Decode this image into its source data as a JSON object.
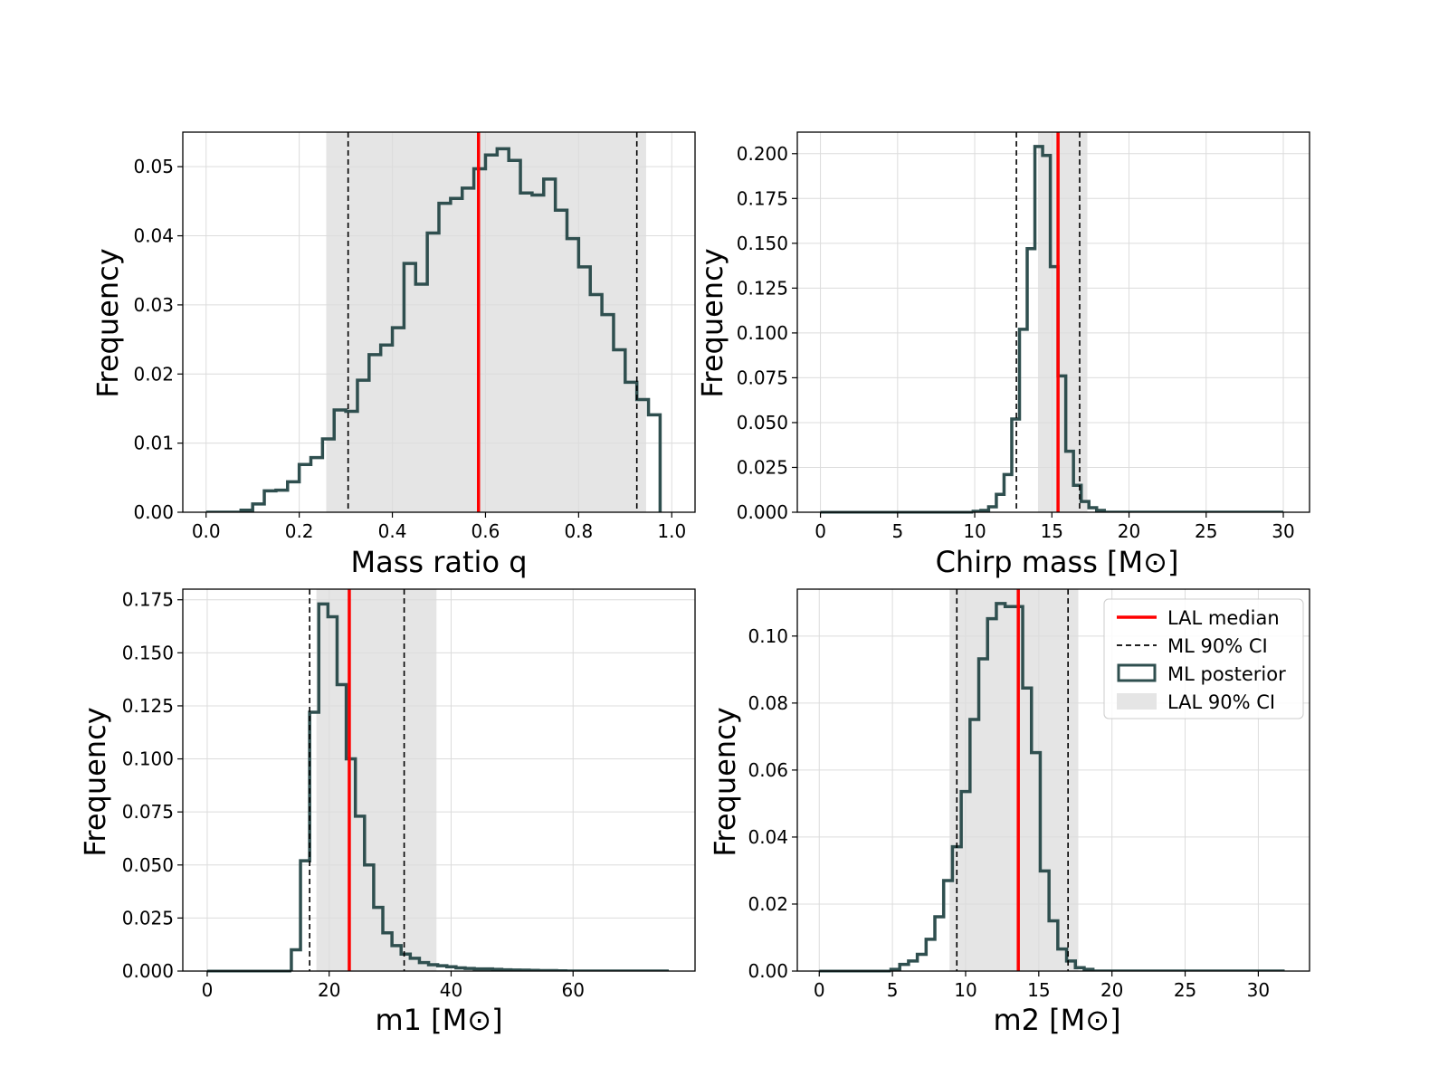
{
  "colors": {
    "median": "#ff0000",
    "ci_dash": "#000000",
    "posterior": "#2f4f4f",
    "lal_band": "#e5e5e5"
  },
  "legend": {
    "median_label": "LAL median",
    "ml_ci_label": "ML 90% CI",
    "posterior_label": "ML posterior",
    "lal_ci_label": "LAL 90% CI"
  },
  "chart_data": [
    {
      "type": "histogram",
      "xlabel": "Mass ratio q",
      "ylabel": "Frequency",
      "xlim": [
        -0.05,
        1.05
      ],
      "ylim": [
        0,
        0.055
      ],
      "xticks": [
        0.0,
        0.2,
        0.4,
        0.6,
        0.8,
        1.0
      ],
      "xtick_labels": [
        "0.0",
        "0.2",
        "0.4",
        "0.6",
        "0.8",
        "1.0"
      ],
      "yticks": [
        0,
        0.01,
        0.02,
        0.03,
        0.04,
        0.05
      ],
      "ytick_labels": [
        "0.00",
        "0.01",
        "0.02",
        "0.03",
        "0.04",
        "0.05"
      ],
      "bin_start": 0.0,
      "bin_width": 0.025,
      "values": [
        0,
        0,
        0,
        0.0003,
        0.0012,
        0.0031,
        0.0032,
        0.0044,
        0.0069,
        0.0079,
        0.0106,
        0.0148,
        0.0146,
        0.0191,
        0.0228,
        0.0242,
        0.0267,
        0.036,
        0.033,
        0.0404,
        0.0447,
        0.0454,
        0.0469,
        0.0497,
        0.0517,
        0.0526,
        0.0509,
        0.0462,
        0.0459,
        0.0482,
        0.0437,
        0.0396,
        0.0355,
        0.0315,
        0.0286,
        0.0235,
        0.0188,
        0.0163,
        0.0141
      ],
      "lal_median": 0.585,
      "lal_ci": [
        0.258,
        0.945
      ],
      "ml_ci": [
        0.305,
        0.925
      ],
      "legend": false
    },
    {
      "type": "histogram",
      "xlabel": "Chirp mass [M⊙]",
      "ylabel": "Frequency",
      "xlim": [
        -1.5,
        31.7
      ],
      "ylim": [
        0,
        0.212
      ],
      "xticks": [
        0,
        5,
        10,
        15,
        20,
        25,
        30
      ],
      "xtick_labels": [
        "0",
        "5",
        "10",
        "15",
        "20",
        "25",
        "30"
      ],
      "yticks": [
        0,
        0.025,
        0.05,
        0.075,
        0.1,
        0.125,
        0.15,
        0.175,
        0.2
      ],
      "ytick_labels": [
        "0.000",
        "0.025",
        "0.050",
        "0.075",
        "0.100",
        "0.125",
        "0.150",
        "0.175",
        "0.200"
      ],
      "bin_start": 9.9,
      "bin_width": 0.5,
      "values": [
        0.0005,
        0.001,
        0.003,
        0.01,
        0.021,
        0.052,
        0.102,
        0.147,
        0.204,
        0.199,
        0.137,
        0.076,
        0.034,
        0.015,
        0.006,
        0.0025,
        0.001
      ],
      "tail_end": 30.0,
      "lal_median": 15.4,
      "lal_ci": [
        14.1,
        17.3
      ],
      "ml_ci": [
        12.7,
        16.8
      ],
      "legend": false
    },
    {
      "type": "histogram",
      "xlabel": "m1 [M⊙]",
      "ylabel": "Frequency",
      "xlim": [
        -4,
        80
      ],
      "ylim": [
        0,
        0.18
      ],
      "xticks": [
        0,
        20,
        40,
        60
      ],
      "xtick_labels": [
        "0",
        "20",
        "40",
        "60"
      ],
      "yticks": [
        0,
        0.025,
        0.05,
        0.075,
        0.1,
        0.125,
        0.15,
        0.175
      ],
      "ytick_labels": [
        "0.000",
        "0.025",
        "0.050",
        "0.075",
        "0.100",
        "0.125",
        "0.150",
        "0.175"
      ],
      "bin_start": 13.8,
      "bin_width": 1.5,
      "values": [
        0.01,
        0.052,
        0.122,
        0.173,
        0.167,
        0.135,
        0.1,
        0.073,
        0.05,
        0.03,
        0.018,
        0.012,
        0.008,
        0.006,
        0.004,
        0.003,
        0.0025,
        0.002,
        0.0015,
        0.0012,
        0.001,
        0.001,
        0.0008,
        0.0006,
        0.0005,
        0.0004,
        0.0003,
        0.0002,
        0.0002,
        0.0001
      ],
      "tail_end": 75.7,
      "lal_median": 23.3,
      "lal_ci": [
        17.9,
        37.6
      ],
      "ml_ci": [
        16.8,
        32.3
      ],
      "legend": false
    },
    {
      "type": "histogram",
      "xlabel": "m2 [M⊙]",
      "ylabel": "Frequency",
      "xlim": [
        -1.5,
        33.5
      ],
      "ylim": [
        0,
        0.114
      ],
      "xticks": [
        0,
        5,
        10,
        15,
        20,
        25,
        30
      ],
      "xtick_labels": [
        "0",
        "5",
        "10",
        "15",
        "20",
        "25",
        "30"
      ],
      "yticks": [
        0,
        0.02,
        0.04,
        0.06,
        0.08,
        0.1
      ],
      "ytick_labels": [
        "0.00",
        "0.02",
        "0.04",
        "0.06",
        "0.08",
        "0.10"
      ],
      "bin_start": 4.9,
      "bin_width": 0.6,
      "values": [
        0.0005,
        0.002,
        0.003,
        0.005,
        0.0095,
        0.0162,
        0.027,
        0.0371,
        0.0536,
        0.0751,
        0.0932,
        0.1052,
        0.1097,
        0.1088,
        0.1088,
        0.0845,
        0.0652,
        0.0299,
        0.015,
        0.0066,
        0.003,
        0.001,
        0.0005
      ],
      "tail_end": 31.8,
      "lal_median": 13.6,
      "lal_ci": [
        8.9,
        17.7
      ],
      "ml_ci": [
        9.4,
        17.0
      ],
      "legend": true
    }
  ]
}
